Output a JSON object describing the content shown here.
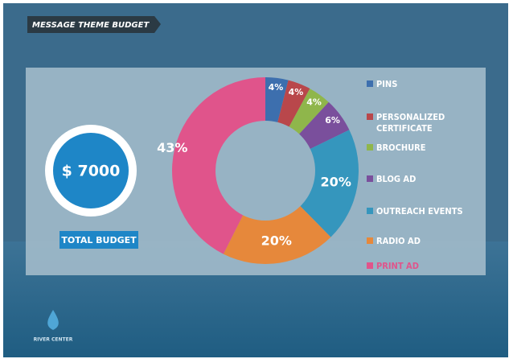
{
  "slide": {
    "heading": "MESSAGE THEME BUDGET",
    "total_amount": "$ 7000",
    "total_label": "TOTAL BUDGET",
    "logo_text": "RIVER CENTER"
  },
  "chart_data": {
    "type": "donut",
    "categories": [
      "PINS",
      "PERSONALIZED CERTIFICATE",
      "BROCHURE",
      "BLOG AD",
      "OUTREACH EVENTS",
      "RADIO AD",
      "PRINT AD"
    ],
    "values": [
      4,
      4,
      4,
      6,
      20,
      20,
      43
    ],
    "value_labels": [
      "4%",
      "4%",
      "4%",
      "6%",
      "20%",
      "20%",
      "43%"
    ],
    "colors": [
      "#3d6fae",
      "#b9474b",
      "#8fb64b",
      "#7a4f9c",
      "#3596bd",
      "#e6883b",
      "#e0548b"
    ],
    "legend": "right"
  }
}
